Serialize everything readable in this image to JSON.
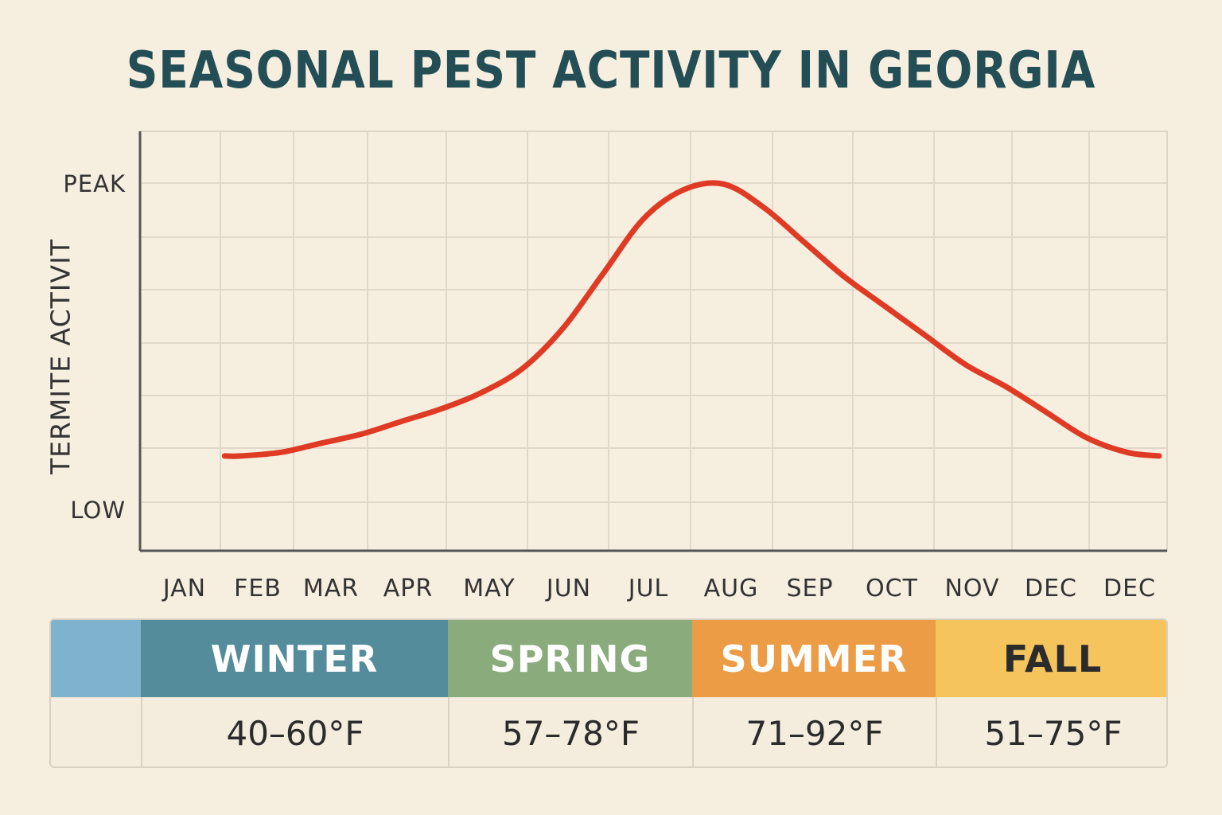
{
  "title": "SEASONAL PEST ACTIVITY IN GEORGIA",
  "chart_data": {
    "type": "line",
    "title": "SEASONAL PEST ACTIVITY IN GEORGIA",
    "ylabel": "TERMITE ACTIVIT",
    "xlabel": "",
    "y_tick_labels": [
      "PEAK",
      "LOW"
    ],
    "x_tick_labels": [
      "JAN",
      "FEB",
      "MAR",
      "APR",
      "MAY",
      "JUN",
      "JUL",
      "AUG",
      "SEP",
      "OCT",
      "NOV",
      "DEC",
      "DEC"
    ],
    "ylim": [
      0,
      100
    ],
    "grid": true,
    "series": [
      {
        "color": "#de3a24",
        "x": [
          0.3,
          0.5,
          1,
          1.5,
          2,
          2.5,
          3,
          3.5,
          4,
          4.5,
          5,
          5.5,
          6,
          6.5,
          7,
          7.5,
          8,
          8.5,
          9,
          9.5,
          10,
          10.5,
          11,
          11.5,
          11.9
        ],
        "y": [
          21,
          21,
          22,
          24.5,
          27,
          30.5,
          34,
          38.5,
          45,
          56,
          71,
          86,
          94,
          95.5,
          89,
          79.5,
          70,
          62,
          54,
          46,
          40,
          33,
          26,
          22,
          21
        ]
      }
    ]
  },
  "season_table": {
    "seasons": [
      {
        "label": "",
        "color": "#7fb2cc",
        "text_color": "#ffffff",
        "temp": ""
      },
      {
        "label": "WINTER",
        "color": "#558c9c",
        "text_color": "#ffffff",
        "temp": "40–60°F"
      },
      {
        "label": "SPRING",
        "color": "#8aab7b",
        "text_color": "#ffffff",
        "temp": "57–78°F"
      },
      {
        "label": "SUMMER",
        "color": "#ec9c45",
        "text_color": "#ffffff",
        "temp": "71–92°F"
      },
      {
        "label": "FALL",
        "color": "#f6c45d",
        "text_color": "#2b2b2b",
        "temp": "51–75°F"
      }
    ]
  }
}
